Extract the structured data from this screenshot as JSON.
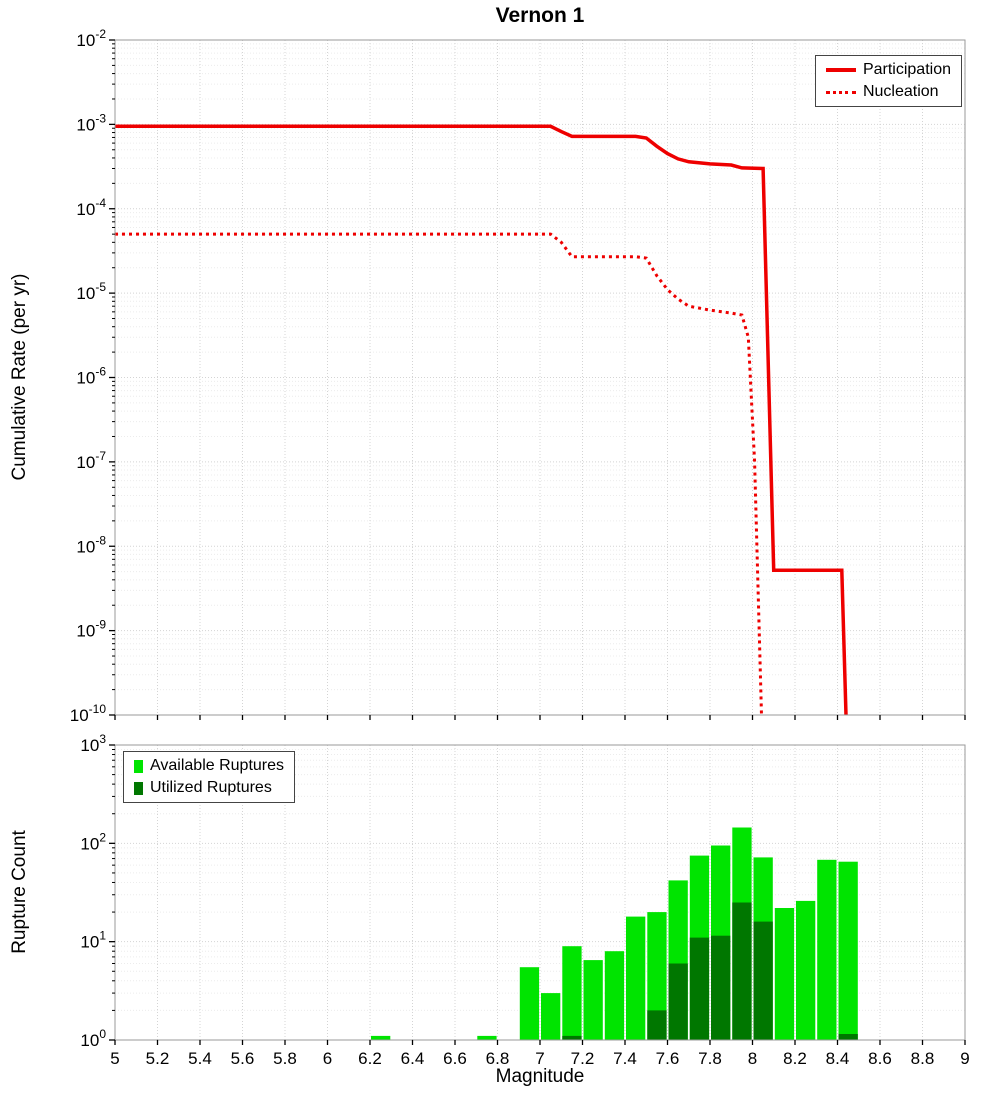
{
  "title": "Vernon 1",
  "colors": {
    "line": "#ee0000",
    "available": "#00e400",
    "utilized": "#007700",
    "grid_major": "#d4d4d4",
    "grid_minor": "#ececec",
    "frame": "#9a9a9a",
    "tick": "#000000"
  },
  "x_axis": {
    "label": "Magnitude",
    "min": 5,
    "max": 9,
    "tick_values": [
      5,
      5.2,
      5.4,
      5.6,
      5.8,
      6,
      6.2,
      6.4,
      6.6,
      6.8,
      7,
      7.2,
      7.4,
      7.6,
      7.8,
      8,
      8.2,
      8.4,
      8.6,
      8.8,
      9
    ],
    "tick_labels": [
      "5",
      "5.2",
      "5.4",
      "5.6",
      "5.8",
      "6",
      "6.2",
      "6.4",
      "6.6",
      "6.8",
      "7",
      "7.2",
      "7.4",
      "7.6",
      "7.8",
      "8",
      "8.2",
      "8.4",
      "8.6",
      "8.8",
      "9"
    ]
  },
  "chart_data": [
    {
      "type": "line",
      "title": "Vernon 1",
      "ylabel": "Cumulative Rate (per yr)",
      "xlabel": "",
      "xlim": [
        5,
        9
      ],
      "ylim": [
        1e-10,
        0.01
      ],
      "y_scale": "log",
      "y_tick_exponents": [
        -2,
        -3,
        -4,
        -5,
        -6,
        -7,
        -8,
        -9,
        -10
      ],
      "grid": true,
      "legend_position": "top-right",
      "series": [
        {
          "name": "Participation",
          "style": "solid",
          "points": [
            [
              5.0,
              0.00095
            ],
            [
              7.05,
              0.00095
            ],
            [
              7.1,
              0.00082
            ],
            [
              7.15,
              0.00072
            ],
            [
              7.45,
              0.00072
            ],
            [
              7.5,
              0.00069
            ],
            [
              7.55,
              0.00055
            ],
            [
              7.6,
              0.00045
            ],
            [
              7.65,
              0.00039
            ],
            [
              7.7,
              0.00036
            ],
            [
              7.8,
              0.00034
            ],
            [
              7.9,
              0.00033
            ],
            [
              7.95,
              0.000305
            ],
            [
              8.05,
              0.0003
            ],
            [
              8.1,
              5.2e-09
            ],
            [
              8.42,
              5.2e-09
            ],
            [
              8.44,
              1e-10
            ],
            [
              8.45,
              2e-11
            ]
          ]
        },
        {
          "name": "Nucleation",
          "style": "dotted",
          "points": [
            [
              5.0,
              5e-05
            ],
            [
              7.05,
              5e-05
            ],
            [
              7.1,
              4e-05
            ],
            [
              7.15,
              2.7e-05
            ],
            [
              7.45,
              2.7e-05
            ],
            [
              7.5,
              2.6e-05
            ],
            [
              7.55,
              1.6e-05
            ],
            [
              7.6,
              1.1e-05
            ],
            [
              7.65,
              8.5e-06
            ],
            [
              7.7,
              7e-06
            ],
            [
              7.8,
              6.3e-06
            ],
            [
              7.9,
              5.8e-06
            ],
            [
              7.95,
              5.5e-06
            ],
            [
              7.98,
              3e-06
            ],
            [
              8.01,
              1e-07
            ],
            [
              8.05,
              2e-11
            ]
          ]
        }
      ]
    },
    {
      "type": "bar",
      "title": "",
      "ylabel": "Rupture Count",
      "xlabel": "Magnitude",
      "xlim": [
        5,
        9
      ],
      "ylim": [
        1,
        1000
      ],
      "y_scale": "log",
      "y_tick_exponents": [
        0,
        1,
        2,
        3
      ],
      "grid": true,
      "legend_position": "top-left",
      "bin_width": 0.1,
      "series": [
        {
          "name": "Available Ruptures",
          "color_key": "available",
          "bars": [
            [
              6.25,
              1.1
            ],
            [
              6.75,
              1.1
            ],
            [
              6.95,
              5.5
            ],
            [
              7.05,
              3
            ],
            [
              7.15,
              9
            ],
            [
              7.25,
              6.5
            ],
            [
              7.35,
              8
            ],
            [
              7.45,
              18
            ],
            [
              7.55,
              20
            ],
            [
              7.65,
              42
            ],
            [
              7.75,
              75
            ],
            [
              7.85,
              95
            ],
            [
              7.95,
              145
            ],
            [
              8.05,
              72
            ],
            [
              8.15,
              22
            ],
            [
              8.25,
              26
            ],
            [
              8.35,
              68
            ],
            [
              8.45,
              65
            ]
          ]
        },
        {
          "name": "Utilized Ruptures",
          "color_key": "utilized",
          "bars": [
            [
              7.15,
              1.1
            ],
            [
              7.55,
              2
            ],
            [
              7.65,
              6
            ],
            [
              7.75,
              11
            ],
            [
              7.85,
              11.5
            ],
            [
              7.95,
              25
            ],
            [
              8.05,
              16
            ],
            [
              8.45,
              1.15
            ]
          ]
        }
      ]
    }
  ]
}
